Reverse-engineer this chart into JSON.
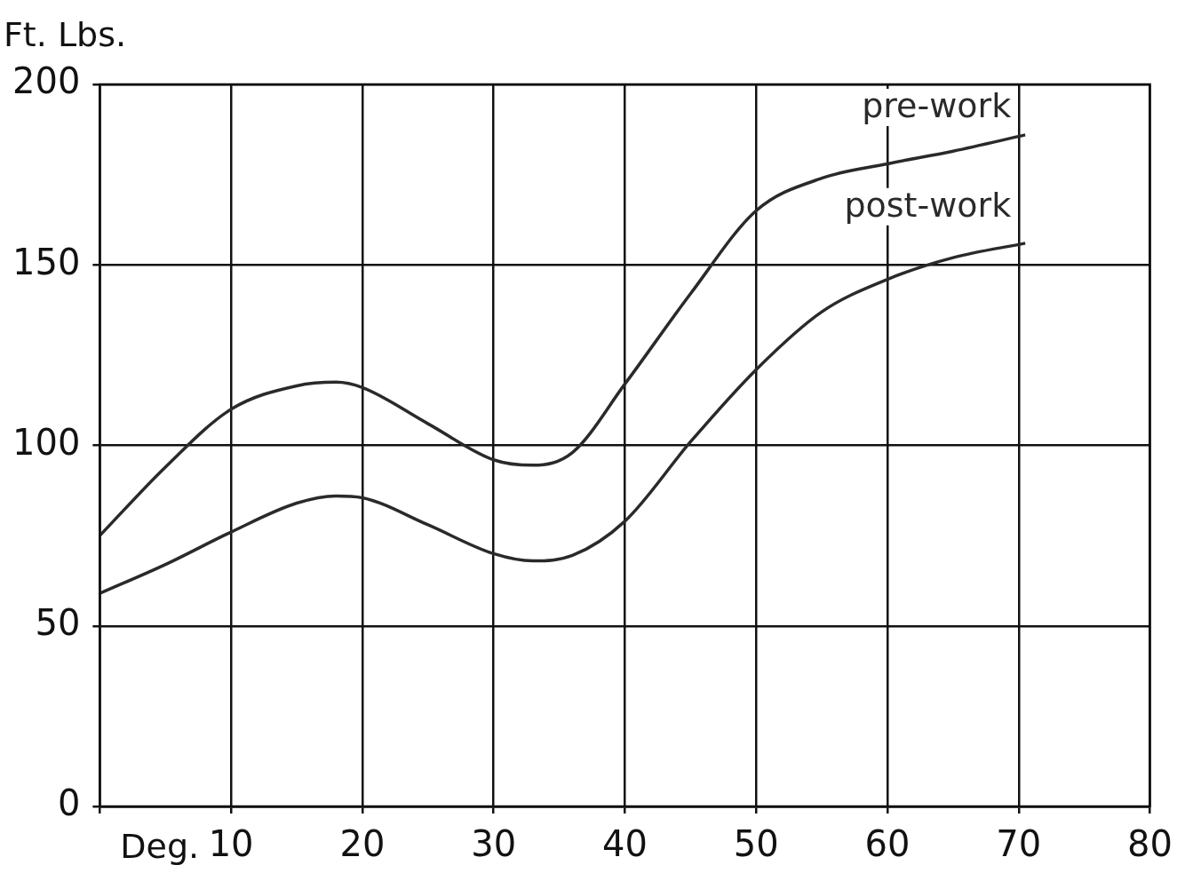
{
  "chart_data": {
    "type": "line",
    "xlabel": "Deg.",
    "ylabel": "Ft. Lbs.",
    "xlim": [
      0,
      80
    ],
    "xticks": [
      {
        "value": 0,
        "label": null
      },
      10,
      20,
      30,
      40,
      50,
      60,
      70,
      80
    ],
    "ylim": [
      0,
      200
    ],
    "yticks": [
      0,
      50,
      100,
      150,
      200
    ],
    "grid": true,
    "legend": false,
    "marker": "none",
    "line_style": "solid",
    "series": [
      {
        "name": "pre-work",
        "color": "#2a2a2a",
        "x": [
          0,
          5,
          10,
          15,
          18,
          20,
          25,
          30,
          33,
          36,
          40,
          45,
          50,
          55,
          60,
          65,
          70.5
        ],
        "values": [
          75,
          94,
          110,
          116.5,
          117.5,
          116,
          106,
          96,
          94.5,
          98,
          117,
          142,
          165,
          174,
          178,
          181.5,
          186
        ]
      },
      {
        "name": "post-work",
        "color": "#2a2a2a",
        "x": [
          0,
          5,
          10,
          15,
          18,
          20,
          25,
          30,
          33,
          36,
          40,
          45,
          50,
          55,
          60,
          65,
          70.5
        ],
        "values": [
          59,
          67,
          76,
          84,
          86,
          85.5,
          78,
          70,
          68,
          69.5,
          79,
          101,
          121,
          137,
          146,
          152,
          156
        ]
      }
    ]
  }
}
